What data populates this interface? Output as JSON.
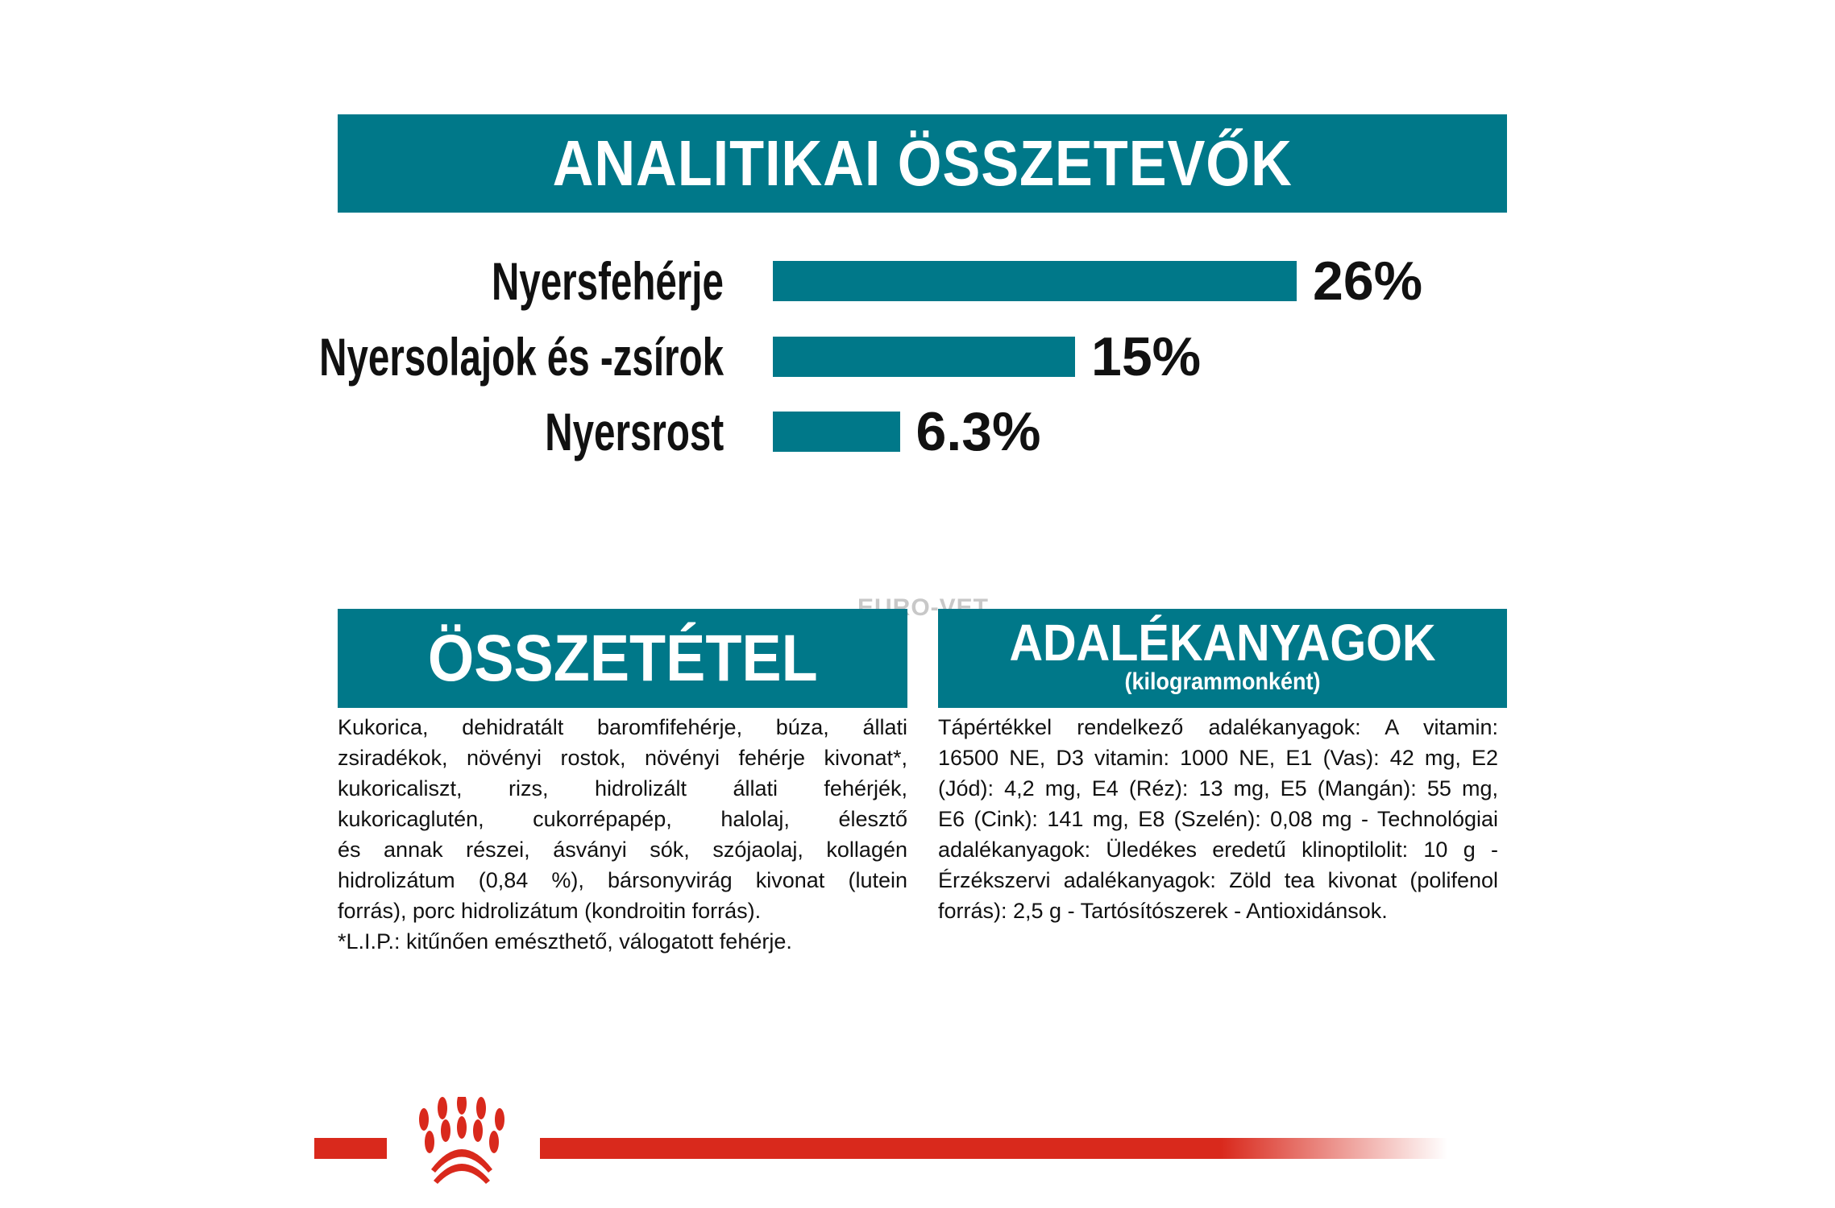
{
  "header": {
    "title": "ANALITIKAI ÖSSZETEVŐK"
  },
  "chart_data": {
    "type": "bar",
    "orientation": "horizontal",
    "categories": [
      "Nyersfehérje",
      "Nyersolajok és -zsírok",
      "Nyersrost"
    ],
    "values": [
      26,
      15,
      6.3
    ],
    "data_labels": [
      "26%",
      "15%",
      "6.3%"
    ],
    "color": "#007889"
  },
  "composition": {
    "title": "ÖSSZETÉTEL",
    "lines": [
      "Kukorica, dehidratált baromfifehérje, búza, állati",
      "zsiradékok, növényi rostok, növényi fehérje kivonat*,",
      "kukoricaliszt, rizs, hidrolizált állati fehérjék,",
      "kukoricaglutén, cukorrépapép, halolaj, élesztő",
      "és annak részei, ásványi sók, szójaolaj, kollagén",
      "hidrolizátum (0,84 %), bársonyvirág kivonat (lutein",
      "forrás), porc hidrolizátum (kondroitin forrás).",
      "*L.I.P.: kitűnően emészthető, válogatott fehérje."
    ]
  },
  "additives": {
    "title": "ADALÉKANYAGOK",
    "subtitle": "(kilogrammonként)",
    "lines": [
      "Tápértékkel rendelkező adalékanyagok: A vitamin:",
      "16500 NE, D3 vitamin: 1000 NE, E1 (Vas): 42 mg, E2",
      "(Jód): 4,2 mg, E4 (Réz): 13 mg, E5 (Mangán): 55 mg,",
      "E6 (Cink): 141 mg, E8 (Szelén): 0,08 mg - Technológiai",
      "adalékanyagok: Üledékes eredetű klinoptilolit: 10 g -",
      "Érzékszervi adalékanyagok: Zöld tea kivonat (polifenol",
      "forrás): 2,5 g - Tartósítószerek - Antioxidánsok."
    ]
  },
  "watermark": "EURO-VET",
  "brand_color": "#d9291c",
  "accent_color": "#007889"
}
